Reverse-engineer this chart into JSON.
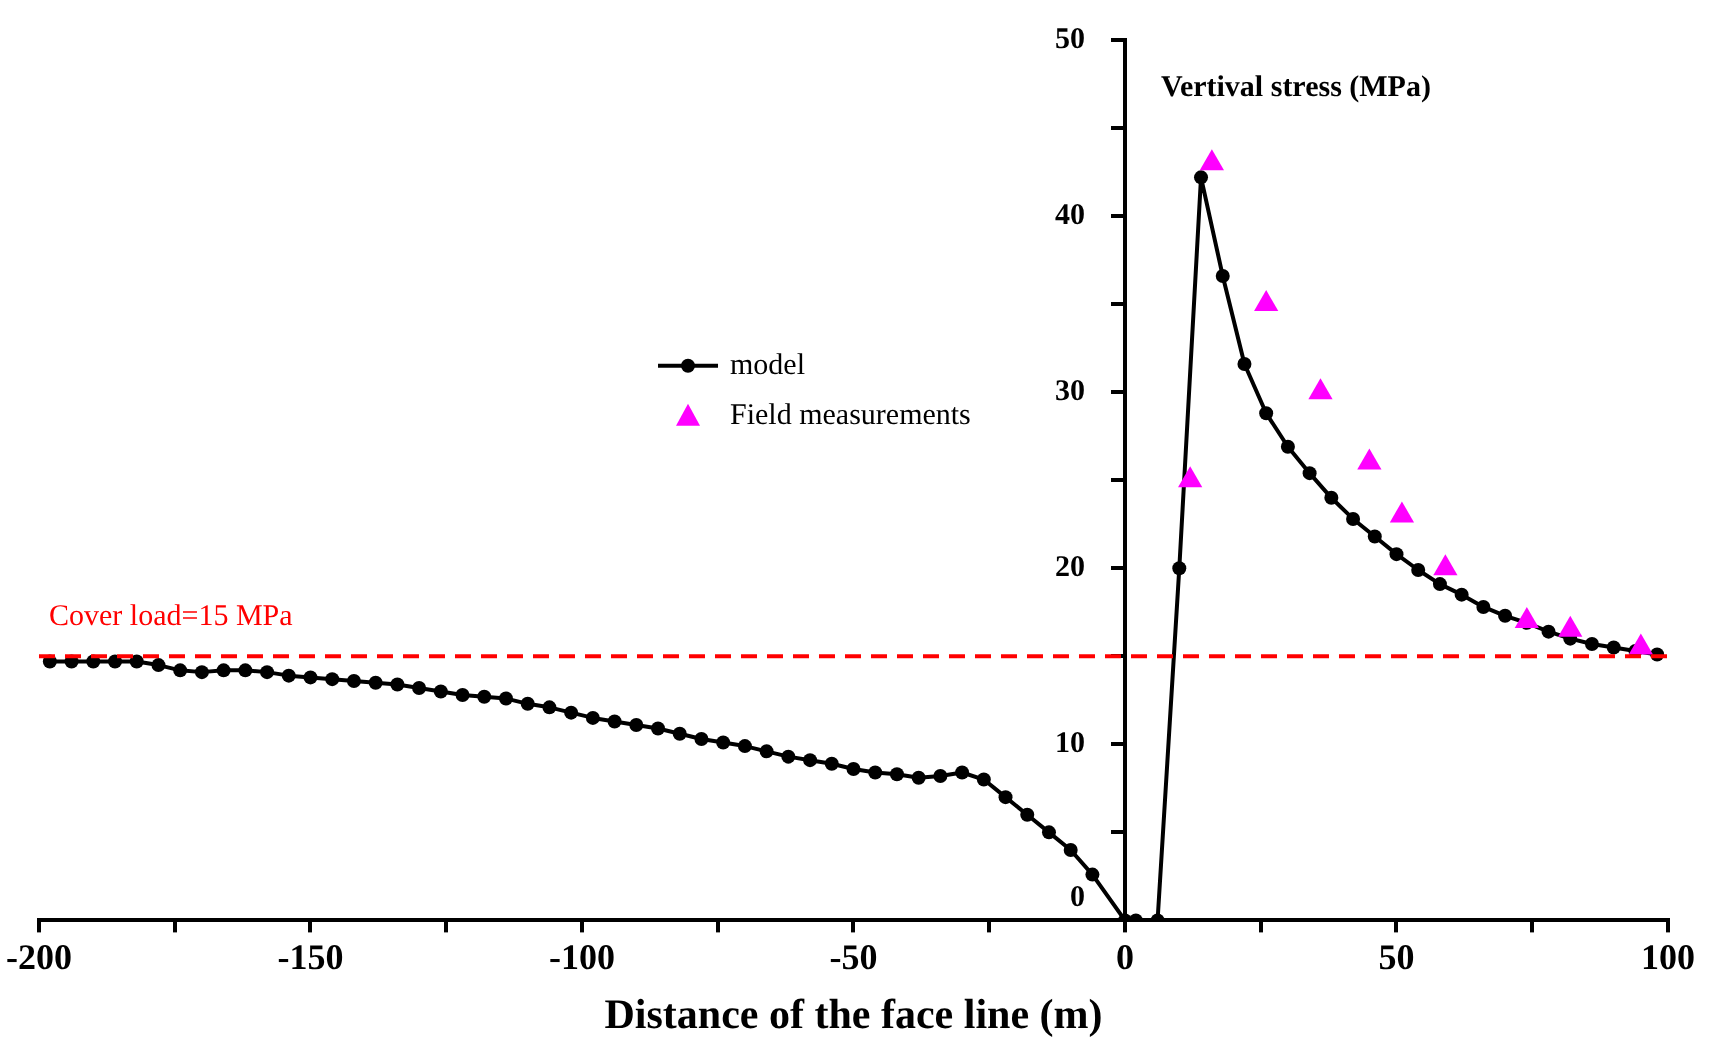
{
  "chart_data": {
    "type": "line",
    "ylabel": "Vertival stress (MPa)",
    "xlabel": "Distance of the face line (m)",
    "xlim": [
      -200,
      100
    ],
    "xticks": [
      -200,
      {
        "value": -175,
        "label": null
      },
      -150,
      {
        "value": -125,
        "label": null
      },
      -100,
      {
        "value": -75,
        "label": null
      },
      -50,
      {
        "value": -25,
        "label": null
      },
      0,
      {
        "value": 25,
        "label": null
      },
      50,
      {
        "value": 75,
        "label": null
      },
      100
    ],
    "ylim": [
      0,
      50
    ],
    "yticks": [
      0,
      {
        "value": 5,
        "label": null
      },
      10,
      {
        "value": 15,
        "label": null
      },
      20,
      {
        "value": 25,
        "label": null
      },
      30,
      {
        "value": 35,
        "label": null
      },
      40,
      {
        "value": 45,
        "label": null
      },
      50
    ],
    "grid": false,
    "legend": "center",
    "ref_lines": [
      {
        "axis": "y",
        "value": 15,
        "label": "Cover load=15 MPa",
        "color": "#ff0000",
        "line_style": "dashed"
      }
    ],
    "series": [
      {
        "name": "model",
        "color": "#000000",
        "marker": "circle",
        "line_style": "solid",
        "x": [
          -198,
          -194,
          -190,
          -186,
          -182,
          -178,
          -174,
          -170,
          -166,
          -162,
          -158,
          -154,
          -150,
          -146,
          -142,
          -138,
          -134,
          -130,
          -126,
          -122,
          -118,
          -114,
          -110,
          -106,
          -102,
          -98,
          -94,
          -90,
          -86,
          -82,
          -78,
          -74,
          -70,
          -66,
          -62,
          -58,
          -54,
          -50,
          -46,
          -42,
          -38,
          -34,
          -30,
          -26,
          -22,
          -18,
          -14,
          -10,
          -6,
          0,
          2,
          6,
          10,
          14,
          18,
          22,
          26,
          30,
          34,
          38,
          42,
          46,
          50,
          54,
          58,
          62,
          66,
          70,
          74,
          78,
          82,
          86,
          90,
          94,
          98
        ],
        "values": [
          14.7,
          14.7,
          14.7,
          14.7,
          14.7,
          14.5,
          14.2,
          14.1,
          14.2,
          14.2,
          14.1,
          13.9,
          13.8,
          13.7,
          13.6,
          13.5,
          13.4,
          13.2,
          13,
          12.8,
          12.7,
          12.6,
          12.3,
          12.1,
          11.8,
          11.5,
          11.3,
          11.1,
          10.9,
          10.6,
          10.3,
          10.1,
          9.9,
          9.6,
          9.3,
          9.1,
          8.9,
          8.6,
          8.4,
          8.3,
          8.1,
          8.2,
          8.4,
          8,
          7,
          6,
          5,
          4,
          2.6,
          0,
          0,
          0,
          20,
          42.2,
          36.6,
          31.6,
          28.8,
          26.9,
          25.4,
          24,
          22.8,
          21.8,
          20.8,
          19.9,
          19.1,
          18.5,
          17.8,
          17.3,
          16.9,
          16.4,
          16,
          15.7,
          15.5,
          15.3,
          15.1
        ]
      },
      {
        "name": "Field measurements",
        "type": "scatter",
        "color": "#ff00ff",
        "marker": "triangle",
        "x": [
          12,
          16,
          26,
          36,
          45,
          51,
          59,
          74,
          82,
          95
        ],
        "values": [
          25,
          43,
          35,
          30,
          26,
          23,
          20,
          17,
          16.5,
          15.5
        ]
      }
    ]
  }
}
